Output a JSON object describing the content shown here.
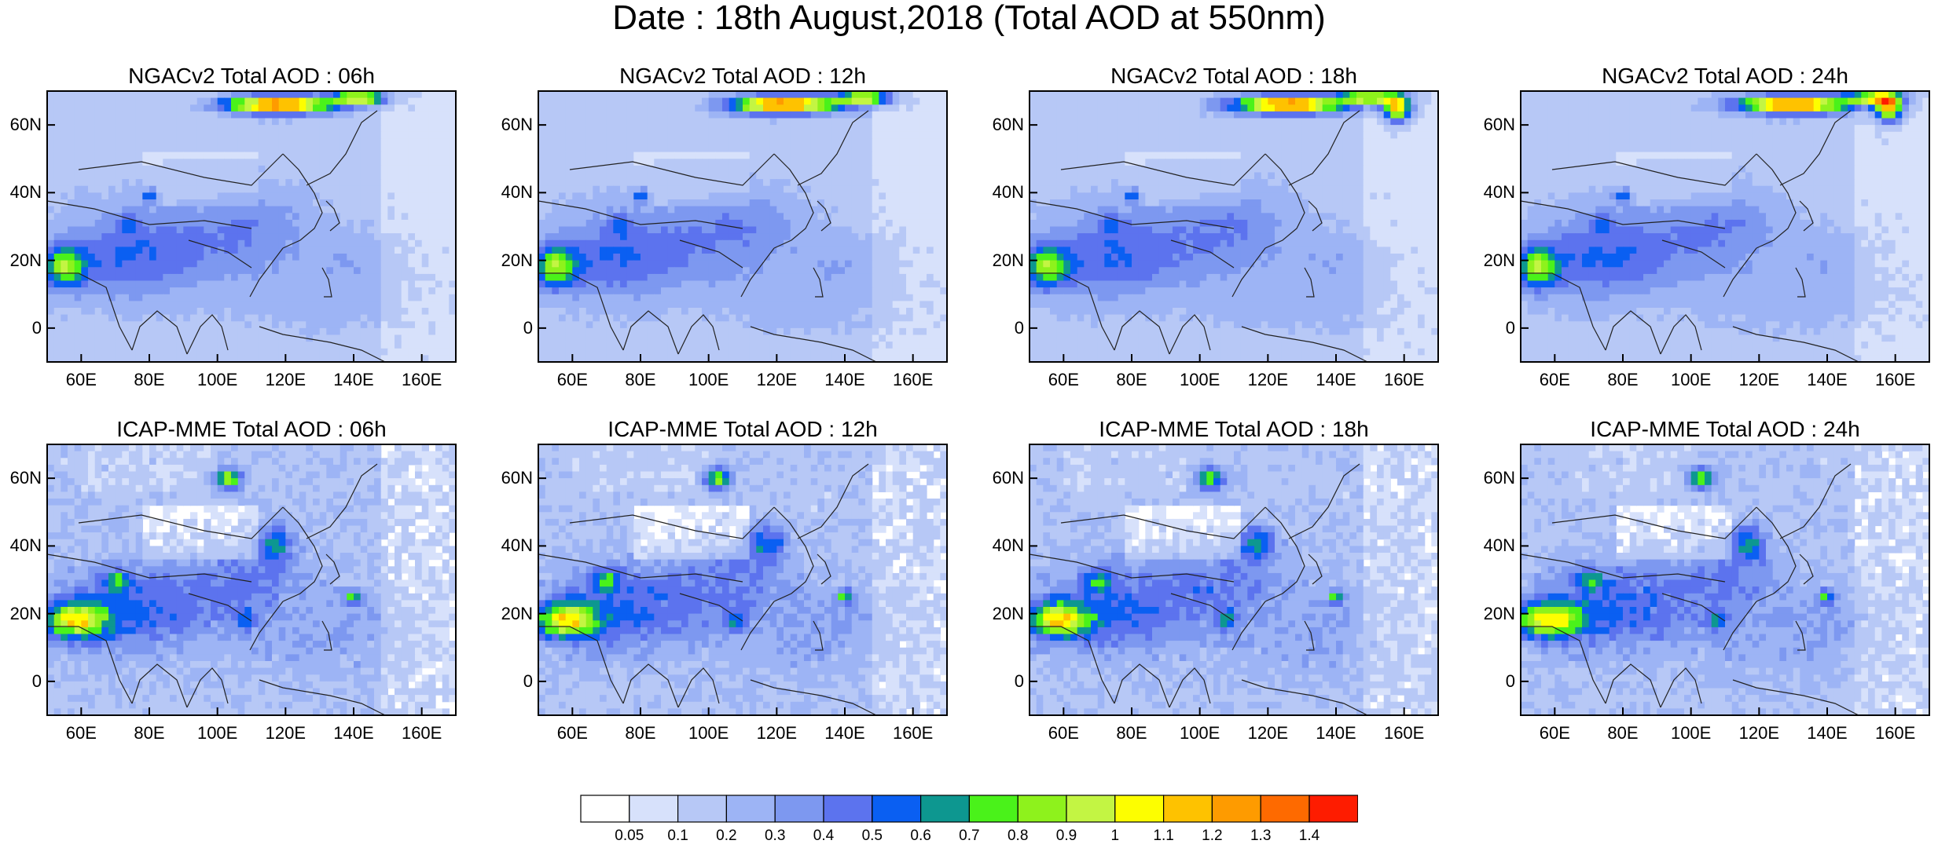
{
  "title": "Date : 18th August,2018 (Total AOD at 550nm)",
  "panels": [
    {
      "title": "NGACv2 Total AOD : 06h",
      "model": "NGACv2",
      "hour": "06h"
    },
    {
      "title": "NGACv2 Total AOD : 12h",
      "model": "NGACv2",
      "hour": "12h"
    },
    {
      "title": "NGACv2 Total AOD : 18h",
      "model": "NGACv2",
      "hour": "18h"
    },
    {
      "title": "NGACv2 Total AOD : 24h",
      "model": "NGACv2",
      "hour": "24h"
    },
    {
      "title": "ICAP-MME Total AOD : 06h",
      "model": "ICAP-MME",
      "hour": "06h"
    },
    {
      "title": "ICAP-MME Total AOD : 12h",
      "model": "ICAP-MME",
      "hour": "12h"
    },
    {
      "title": "ICAP-MME Total AOD : 18h",
      "model": "ICAP-MME",
      "hour": "18h"
    },
    {
      "title": "ICAP-MME Total AOD : 24h",
      "model": "ICAP-MME",
      "hour": "24h"
    }
  ],
  "axes": {
    "lat_labels": [
      "60N",
      "40N",
      "20N",
      "0"
    ],
    "lon_labels": [
      "60E",
      "80E",
      "100E",
      "120E",
      "140E",
      "160E"
    ],
    "lat_range": [
      -10,
      70
    ],
    "lon_range": [
      50,
      170
    ]
  },
  "colorbar": {
    "labels": [
      "0.05",
      "0.1",
      "0.2",
      "0.3",
      "0.4",
      "0.5",
      "0.6",
      "0.7",
      "0.8",
      "0.9",
      "1",
      "1.1",
      "1.2",
      "1.3",
      "1.4"
    ],
    "colors": [
      "#ffffff",
      "#d7e1fb",
      "#b7c8f6",
      "#9db4f5",
      "#7d98f0",
      "#5c73ee",
      "#0a5ff2",
      "#0d9790",
      "#4af21a",
      "#8ef21c",
      "#c3f543",
      "#fdfe00",
      "#fec200",
      "#fe9b00",
      "#fe6a00",
      "#fe1c00"
    ]
  }
}
